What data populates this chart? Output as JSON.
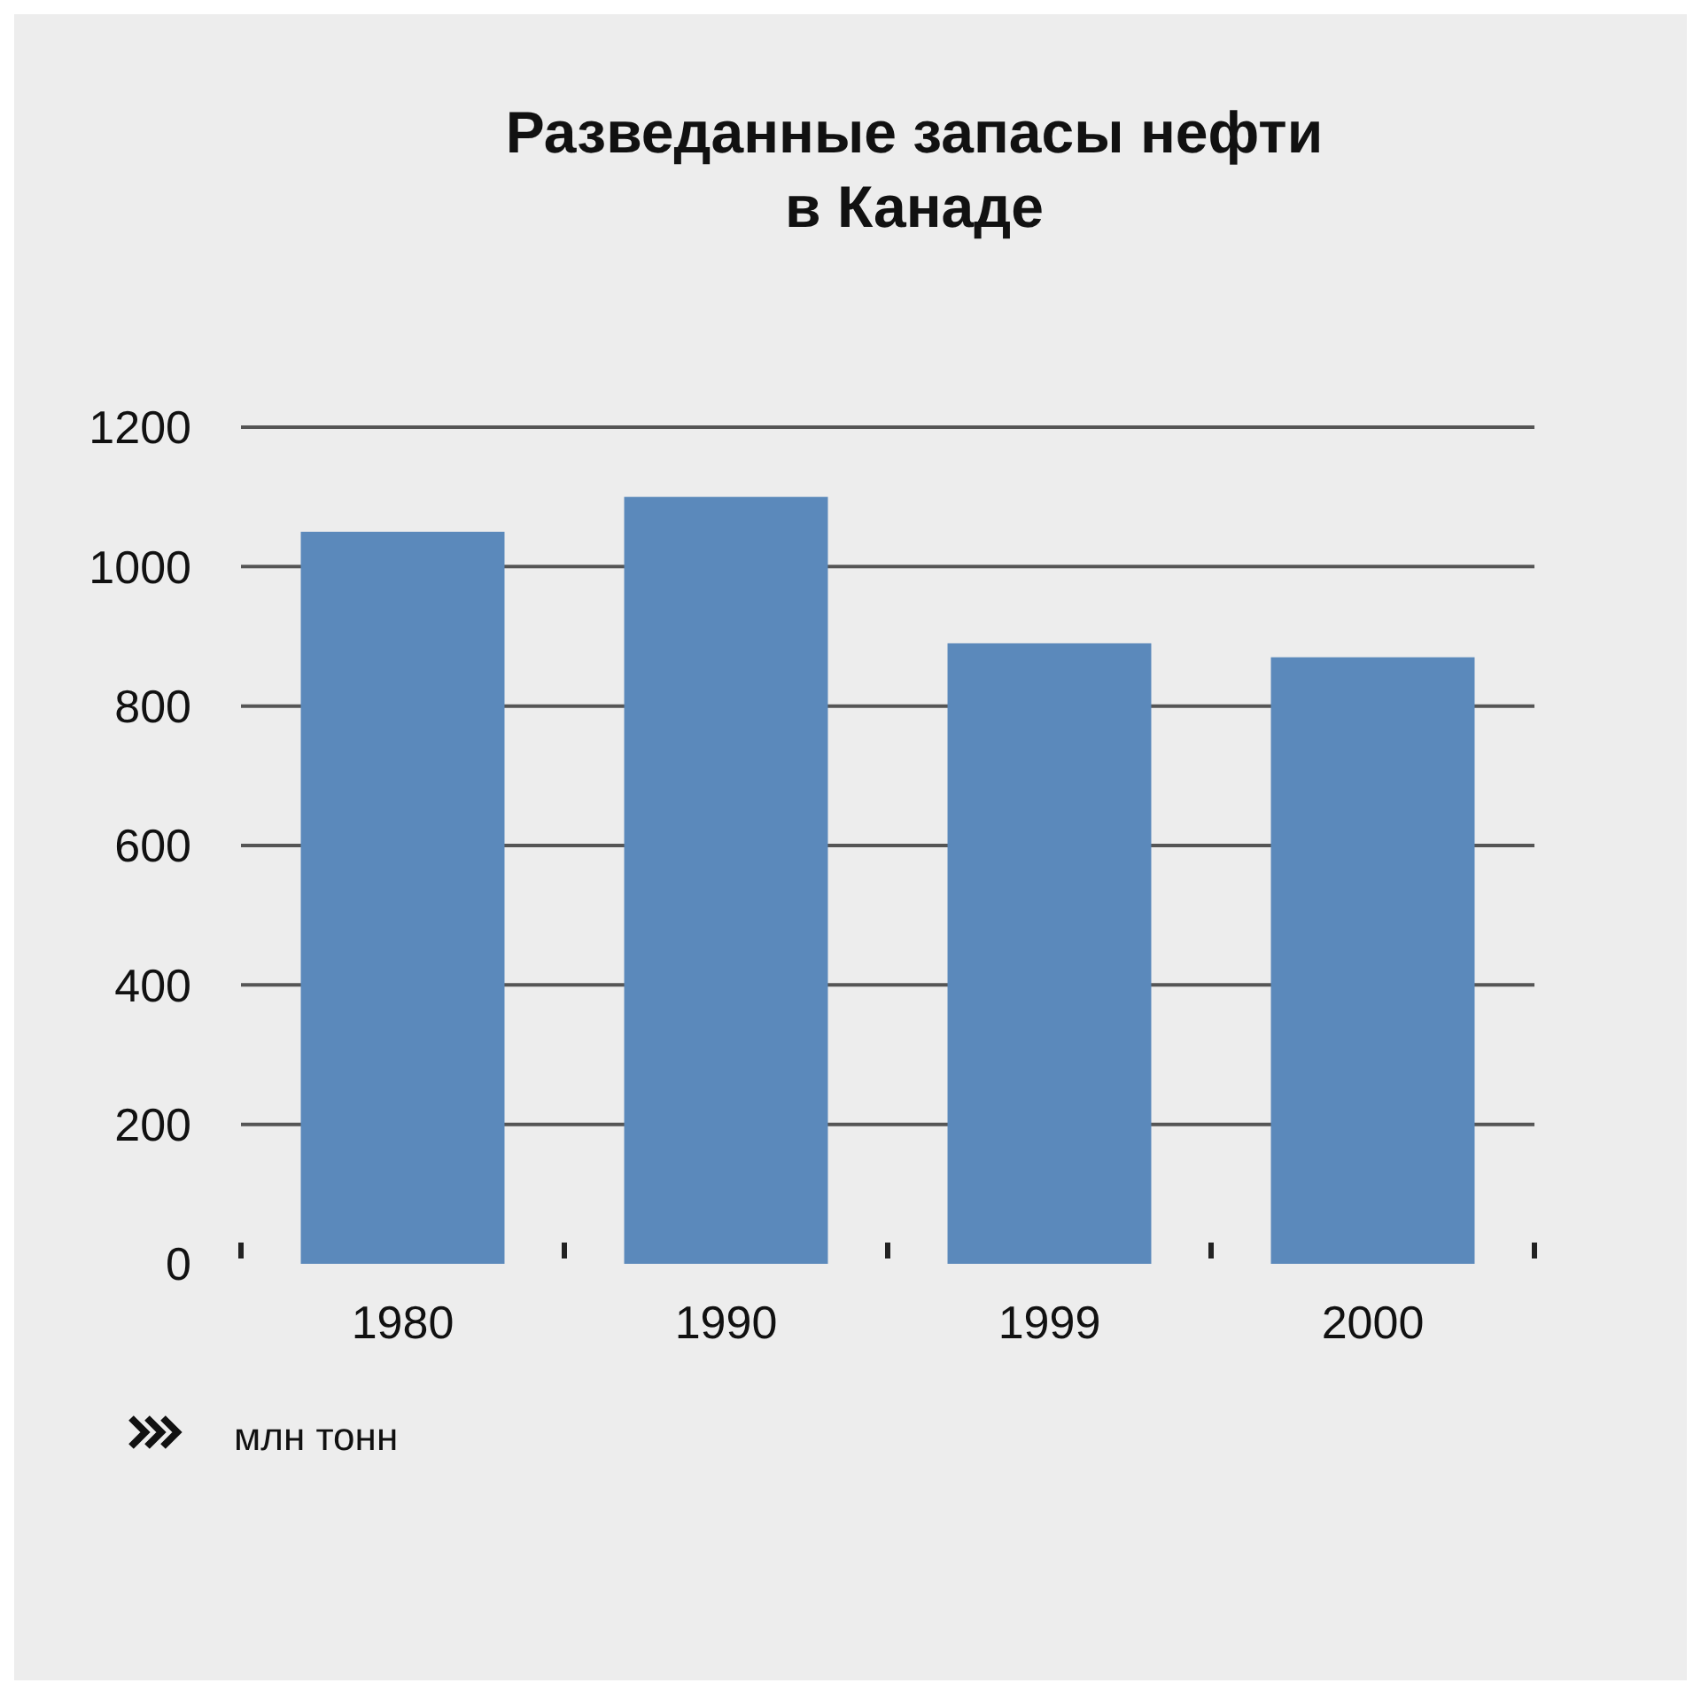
{
  "chart_data": {
    "type": "bar",
    "title": "Разведанные запасы нефти\nв Канаде",
    "annotations": [
      "млн тонн"
    ],
    "categories": [
      "1980",
      "1990",
      "1999",
      "2000"
    ],
    "values": [
      1050,
      1100,
      890,
      870
    ],
    "color": "#5b89bb",
    "ylim": [
      0,
      1200
    ],
    "yticks": [
      0,
      200,
      400,
      600,
      800,
      1000,
      1200
    ],
    "grid": "y"
  }
}
